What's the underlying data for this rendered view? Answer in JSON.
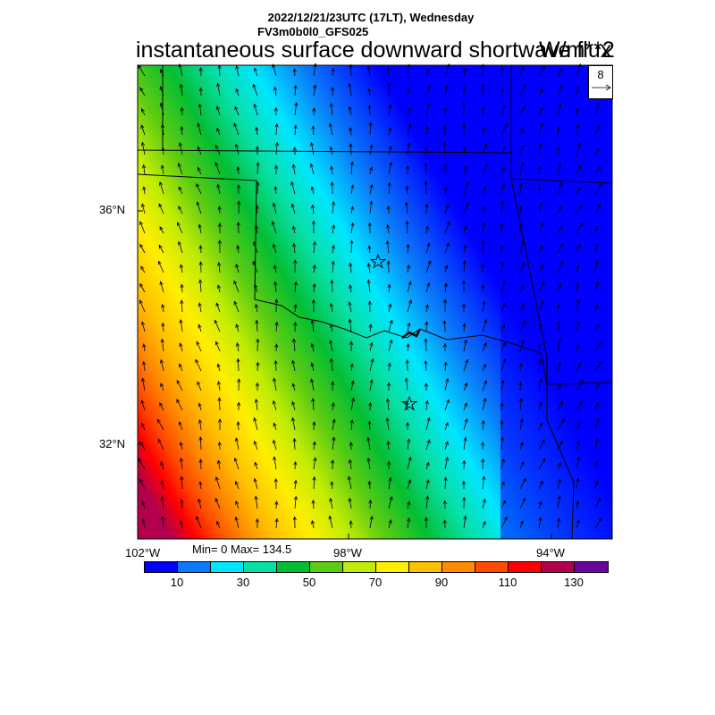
{
  "header": {
    "datetime": "2022/12/21/23UTC (17LT), Wednesday",
    "model": "FV3m0b0l0_GFS025",
    "title": "instantaneous surface downward shortwave flux",
    "units": "W/m**2"
  },
  "reference_vector": {
    "value": "8"
  },
  "lat_labels": [
    "36°N",
    "32°N"
  ],
  "lon_labels": [
    "102°W",
    "98°W",
    "94°W"
  ],
  "stats": {
    "text": "Min= 0 Max= 134.5"
  },
  "colorbar": {
    "colors": [
      "#0000ff",
      "#0a7afa",
      "#00e6ff",
      "#06e0a6",
      "#04be32",
      "#5ccc12",
      "#c0ec04",
      "#ffee00",
      "#ffc000",
      "#ff8c00",
      "#ff4a00",
      "#ff0000",
      "#b4004c",
      "#68069e"
    ],
    "labels": [
      "10",
      "30",
      "50",
      "70",
      "90",
      "110",
      "130"
    ]
  },
  "markers": {
    "count": 2,
    "icon": "star-icon"
  }
}
